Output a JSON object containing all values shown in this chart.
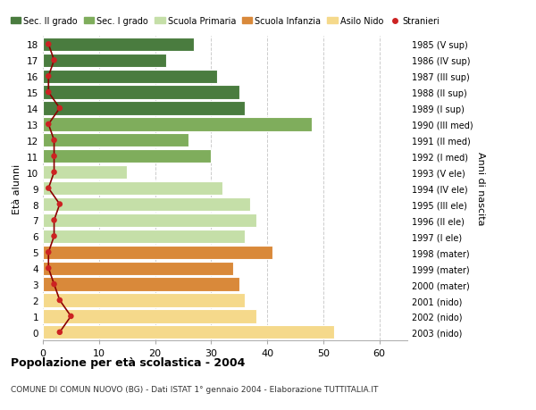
{
  "ages": [
    18,
    17,
    16,
    15,
    14,
    13,
    12,
    11,
    10,
    9,
    8,
    7,
    6,
    5,
    4,
    3,
    2,
    1,
    0
  ],
  "bar_values": [
    27,
    22,
    31,
    35,
    36,
    48,
    26,
    30,
    15,
    32,
    37,
    38,
    36,
    41,
    34,
    35,
    36,
    38,
    52
  ],
  "bar_colors": [
    "#4a7c3f",
    "#4a7c3f",
    "#4a7c3f",
    "#4a7c3f",
    "#4a7c3f",
    "#7fad5c",
    "#7fad5c",
    "#7fad5c",
    "#c5dfa8",
    "#c5dfa8",
    "#c5dfa8",
    "#c5dfa8",
    "#c5dfa8",
    "#d9893a",
    "#d9893a",
    "#d9893a",
    "#f5d98b",
    "#f5d98b",
    "#f5d98b"
  ],
  "stranieri_values": [
    1,
    2,
    1,
    1,
    3,
    1,
    2,
    2,
    2,
    1,
    3,
    2,
    2,
    1,
    1,
    2,
    3,
    5,
    3
  ],
  "right_labels": [
    "1985 (V sup)",
    "1986 (IV sup)",
    "1987 (III sup)",
    "1988 (II sup)",
    "1989 (I sup)",
    "1990 (III med)",
    "1991 (II med)",
    "1992 (I med)",
    "1993 (V ele)",
    "1994 (IV ele)",
    "1995 (III ele)",
    "1996 (II ele)",
    "1997 (I ele)",
    "1998 (mater)",
    "1999 (mater)",
    "2000 (mater)",
    "2001 (nido)",
    "2002 (nido)",
    "2003 (nido)"
  ],
  "legend_labels": [
    "Sec. II grado",
    "Sec. I grado",
    "Scuola Primaria",
    "Scuola Infanzia",
    "Asilo Nido",
    "Stranieri"
  ],
  "legend_colors": [
    "#4a7c3f",
    "#7fad5c",
    "#c5dfa8",
    "#d9893a",
    "#f5d98b",
    "#cc2222"
  ],
  "ylabel": "Età alunni",
  "right_ylabel": "Anni di nascita",
  "title": "Popolazione per età scolastica - 2004",
  "subtitle": "COMUNE DI COMUN NUOVO (BG) - Dati ISTAT 1° gennaio 2004 - Elaborazione TUTTITALIA.IT",
  "xlim": [
    0,
    65
  ],
  "xticks": [
    0,
    10,
    20,
    30,
    40,
    50,
    60
  ],
  "background_color": "#ffffff",
  "plot_bg_color": "#ffffff",
  "grid_color": "#cccccc",
  "stranieri_line_color": "#8b0000",
  "stranieri_dot_color": "#cc2222"
}
